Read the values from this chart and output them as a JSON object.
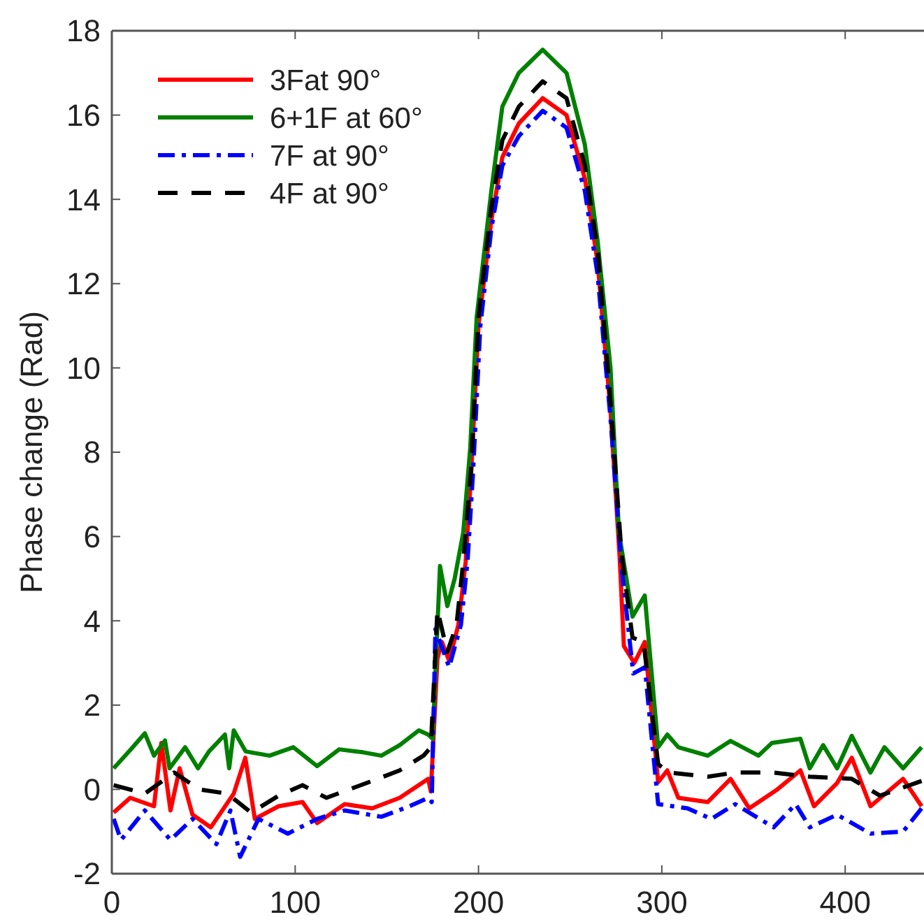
{
  "chart_data": {
    "type": "line",
    "ylabel": "Phase change (Rad)",
    "xlim": [
      0,
      443
    ],
    "ylim": [
      -2,
      18
    ],
    "xticks": [
      0,
      100,
      200,
      300,
      400
    ],
    "yticks": [
      -2,
      0,
      2,
      4,
      6,
      8,
      10,
      12,
      14,
      16,
      18
    ],
    "grid": false,
    "legend": "top left",
    "series": [
      {
        "name": "3Fat 90°",
        "color": "#ff0000",
        "line_style": "solid",
        "x": [
          1,
          10,
          23,
          27,
          32,
          37,
          44,
          54,
          66.5,
          72.8,
          78,
          91,
          104,
          112,
          127,
          142,
          157,
          172.6,
          174,
          177.6,
          180,
          184,
          189,
          193,
          196,
          200,
          207,
          213,
          222,
          235,
          248,
          258,
          265,
          272,
          277,
          279.3,
          285,
          290.7,
          298,
          303,
          309,
          325,
          337.5,
          347.7,
          363,
          375.6,
          383,
          395.6,
          403.6,
          413.8,
          431.6,
          441.7
        ],
        "values": [
          -0.55,
          -0.2,
          -0.4,
          1.1,
          -0.5,
          0.5,
          -0.6,
          -0.9,
          -0.1,
          0.75,
          -0.7,
          -0.4,
          -0.3,
          -0.8,
          -0.35,
          -0.45,
          -0.2,
          0.25,
          -0.05,
          3.1,
          3.5,
          3.05,
          3.9,
          5.4,
          7.5,
          11,
          13.5,
          15,
          15.8,
          16.4,
          16,
          14.5,
          12.5,
          9,
          5.5,
          3.4,
          3.0,
          3.5,
          0.17,
          0.45,
          -0.2,
          -0.3,
          0.25,
          -0.45,
          0,
          0.45,
          -0.4,
          0.15,
          0.75,
          -0.4,
          0.25,
          -0.4
        ]
      },
      {
        "name": "6+1F at 60°",
        "color": "#008000",
        "line_style": "solid",
        "x": [
          1,
          10,
          18,
          23,
          29,
          31.5,
          40,
          47,
          53,
          61.7,
          64,
          66.5,
          73,
          86,
          99,
          112,
          124,
          137,
          147,
          157,
          167.5,
          172.6,
          175,
          179,
          183,
          187,
          191.7,
          195.5,
          199,
          207,
          213,
          222,
          235,
          248,
          258,
          265,
          272,
          276.6,
          284,
          290.7,
          298,
          303,
          309,
          325,
          337.5,
          352.7,
          360,
          375.6,
          380.7,
          388,
          395.6,
          403.6,
          413.8,
          421.4,
          431.6,
          441.7
        ],
        "values": [
          0.5,
          0.93,
          1.33,
          0.8,
          1.16,
          0.5,
          1.0,
          0.5,
          0.9,
          1.3,
          0.5,
          1.4,
          0.9,
          0.8,
          1.0,
          0.55,
          0.95,
          0.88,
          0.8,
          1.05,
          1.4,
          1.3,
          1.2,
          5.3,
          4.35,
          5.0,
          6.1,
          8.1,
          11.2,
          14.2,
          16.2,
          17.0,
          17.55,
          17.0,
          15.3,
          13,
          10,
          6.1,
          4.1,
          4.6,
          1.0,
          1.3,
          1.0,
          0.8,
          1.15,
          0.8,
          1.1,
          1.2,
          0.5,
          1.05,
          0.5,
          1.27,
          0.4,
          1.0,
          0.5,
          1.0
        ]
      },
      {
        "name": "7F at 90°",
        "color": "#0000ff",
        "line_style": "dashdot",
        "x": [
          1,
          5,
          18,
          32,
          44,
          57,
          64.7,
          70,
          80,
          96,
          112,
          127,
          147,
          162.4,
          172.6,
          174.5,
          176.5,
          184,
          190.4,
          194,
          197,
          201,
          207,
          213,
          222,
          235,
          248,
          258,
          265,
          272,
          278,
          284.4,
          290.7,
          298,
          314,
          327,
          340,
          361,
          373,
          380.7,
          395.6,
          413.8,
          431.6,
          441.7
        ],
        "values": [
          -0.7,
          -1.2,
          -0.5,
          -1.2,
          -0.7,
          -1.3,
          -0.5,
          -1.6,
          -0.7,
          -1.05,
          -0.7,
          -0.5,
          -0.65,
          -0.4,
          -0.2,
          -0.3,
          3.8,
          2.9,
          3.9,
          5.4,
          7.5,
          11,
          13.3,
          14.8,
          15.5,
          16.1,
          15.7,
          14.2,
          12.2,
          8.8,
          5.3,
          2.75,
          2.9,
          -0.35,
          -0.45,
          -0.7,
          -0.35,
          -0.9,
          -0.35,
          -0.9,
          -0.6,
          -1.05,
          -1.0,
          -0.45
        ]
      },
      {
        "name": "4F at 90°",
        "color": "#000000",
        "line_style": "dashed",
        "x": [
          1,
          18,
          34,
          47.7,
          63,
          76,
          91,
          104,
          117,
          142,
          157,
          170,
          174,
          177.6,
          183,
          188,
          191.7,
          196,
          200,
          207,
          213,
          222,
          235,
          248,
          258,
          265,
          272,
          278,
          284,
          290,
          298,
          303.6,
          325,
          340,
          360.6,
          380.7,
          403.6,
          419,
          441.7
        ],
        "values": [
          0.1,
          -0.1,
          0.4,
          0,
          -0.1,
          -0.55,
          -0.15,
          0.1,
          -0.2,
          0.2,
          0.45,
          0.8,
          1.0,
          4.26,
          3.26,
          3.9,
          5.4,
          7.6,
          11.2,
          13.8,
          15.4,
          16.2,
          16.8,
          16.4,
          14.8,
          12.8,
          9.2,
          5.6,
          3.6,
          3.5,
          0.6,
          0.4,
          0.3,
          0.4,
          0.4,
          0.3,
          0.25,
          -0.15,
          0.2
        ]
      }
    ]
  }
}
